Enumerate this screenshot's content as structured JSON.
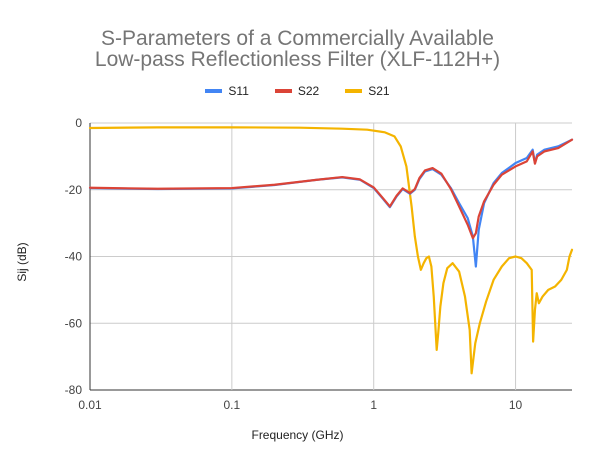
{
  "chart_data": {
    "type": "line",
    "title_lines": [
      "S-Parameters of a Commercially Available",
      "Low-pass Reflectionless Filter (XLF-112H+)"
    ],
    "xlabel": "Frequency (GHz)",
    "ylabel": "Sij (dB)",
    "x_scale": "log",
    "xlim": [
      0.01,
      25
    ],
    "ylim": [
      -80,
      0
    ],
    "x_ticks": [
      0.01,
      0.1,
      1,
      10
    ],
    "x_tick_labels": [
      "0.01",
      "0.1",
      "1",
      "10"
    ],
    "y_ticks": [
      0,
      -20,
      -40,
      -60,
      -80
    ],
    "y_tick_labels": [
      "0",
      "-20",
      "-40",
      "-60",
      "-80"
    ],
    "grid": true,
    "legend_position": "top",
    "series": [
      {
        "name": "S11",
        "color": "#4285f4",
        "x": [
          0.01,
          0.03,
          0.1,
          0.2,
          0.4,
          0.6,
          0.8,
          1.0,
          1.15,
          1.3,
          1.45,
          1.6,
          1.7,
          1.8,
          1.95,
          2.1,
          2.3,
          2.6,
          3.0,
          3.5,
          4.0,
          4.6,
          5.0,
          5.25,
          5.5,
          6.0,
          7.0,
          8.0,
          10.0,
          12.0,
          13.2,
          13.7,
          14.2,
          16.0,
          20.0,
          25.0
        ],
        "y": [
          -19.5,
          -19.8,
          -19.6,
          -18.6,
          -17.0,
          -16.3,
          -17.0,
          -19.5,
          -22.5,
          -25.2,
          -22.0,
          -19.8,
          -20.5,
          -21.2,
          -20.0,
          -16.8,
          -14.5,
          -13.8,
          -15.5,
          -19.5,
          -24.0,
          -28.5,
          -34.0,
          -43.0,
          -32.0,
          -24.0,
          -18.0,
          -15.0,
          -12.0,
          -10.5,
          -8.0,
          -12.0,
          -9.5,
          -8.0,
          -7.0,
          -5.0
        ]
      },
      {
        "name": "S22",
        "color": "#db4437",
        "x": [
          0.01,
          0.03,
          0.1,
          0.2,
          0.4,
          0.6,
          0.8,
          1.0,
          1.15,
          1.3,
          1.45,
          1.6,
          1.7,
          1.8,
          1.95,
          2.1,
          2.3,
          2.6,
          3.0,
          3.5,
          4.0,
          4.6,
          5.0,
          5.25,
          5.5,
          6.0,
          7.0,
          8.0,
          10.0,
          12.0,
          13.2,
          13.7,
          14.2,
          16.0,
          20.0,
          25.0
        ],
        "y": [
          -19.4,
          -19.7,
          -19.5,
          -18.5,
          -17.0,
          -16.2,
          -16.9,
          -19.3,
          -22.3,
          -25.0,
          -21.8,
          -19.6,
          -20.3,
          -21.0,
          -19.8,
          -16.5,
          -14.2,
          -13.5,
          -15.2,
          -19.8,
          -25.0,
          -30.5,
          -34.5,
          -33.0,
          -28.0,
          -23.5,
          -18.5,
          -15.5,
          -13.0,
          -11.5,
          -8.5,
          -12.2,
          -10.0,
          -8.5,
          -7.5,
          -5.0
        ]
      },
      {
        "name": "S21",
        "color": "#f4b400",
        "x": [
          0.01,
          0.03,
          0.1,
          0.3,
          0.6,
          0.9,
          1.2,
          1.4,
          1.55,
          1.7,
          1.85,
          1.95,
          2.05,
          2.15,
          2.25,
          2.35,
          2.45,
          2.55,
          2.65,
          2.78,
          2.85,
          2.95,
          3.1,
          3.3,
          3.6,
          4.0,
          4.4,
          4.75,
          4.9,
          5.2,
          5.6,
          6.2,
          7.0,
          8.0,
          9.0,
          10.0,
          11.0,
          12.0,
          13.0,
          13.3,
          13.7,
          14.1,
          14.6,
          15.5,
          17.0,
          19.0,
          21.0,
          23.0,
          24.0,
          25.0
        ],
        "y": [
          -1.5,
          -1.3,
          -1.3,
          -1.4,
          -1.7,
          -2.0,
          -2.8,
          -4.0,
          -7.0,
          -13.0,
          -25.0,
          -34.0,
          -40.0,
          -44.0,
          -42.0,
          -40.5,
          -40.0,
          -43.0,
          -52.0,
          -68.0,
          -63.0,
          -55.0,
          -48.0,
          -43.5,
          -42.0,
          -44.5,
          -52.0,
          -62.0,
          -75.0,
          -66.0,
          -60.0,
          -53.5,
          -47.0,
          -43.0,
          -40.5,
          -40.0,
          -40.5,
          -42.0,
          -44.0,
          -65.5,
          -56.0,
          -51.0,
          -54.0,
          -52.0,
          -50.0,
          -49.0,
          -47.0,
          -44.0,
          -40.0,
          -38.0
        ]
      }
    ]
  }
}
